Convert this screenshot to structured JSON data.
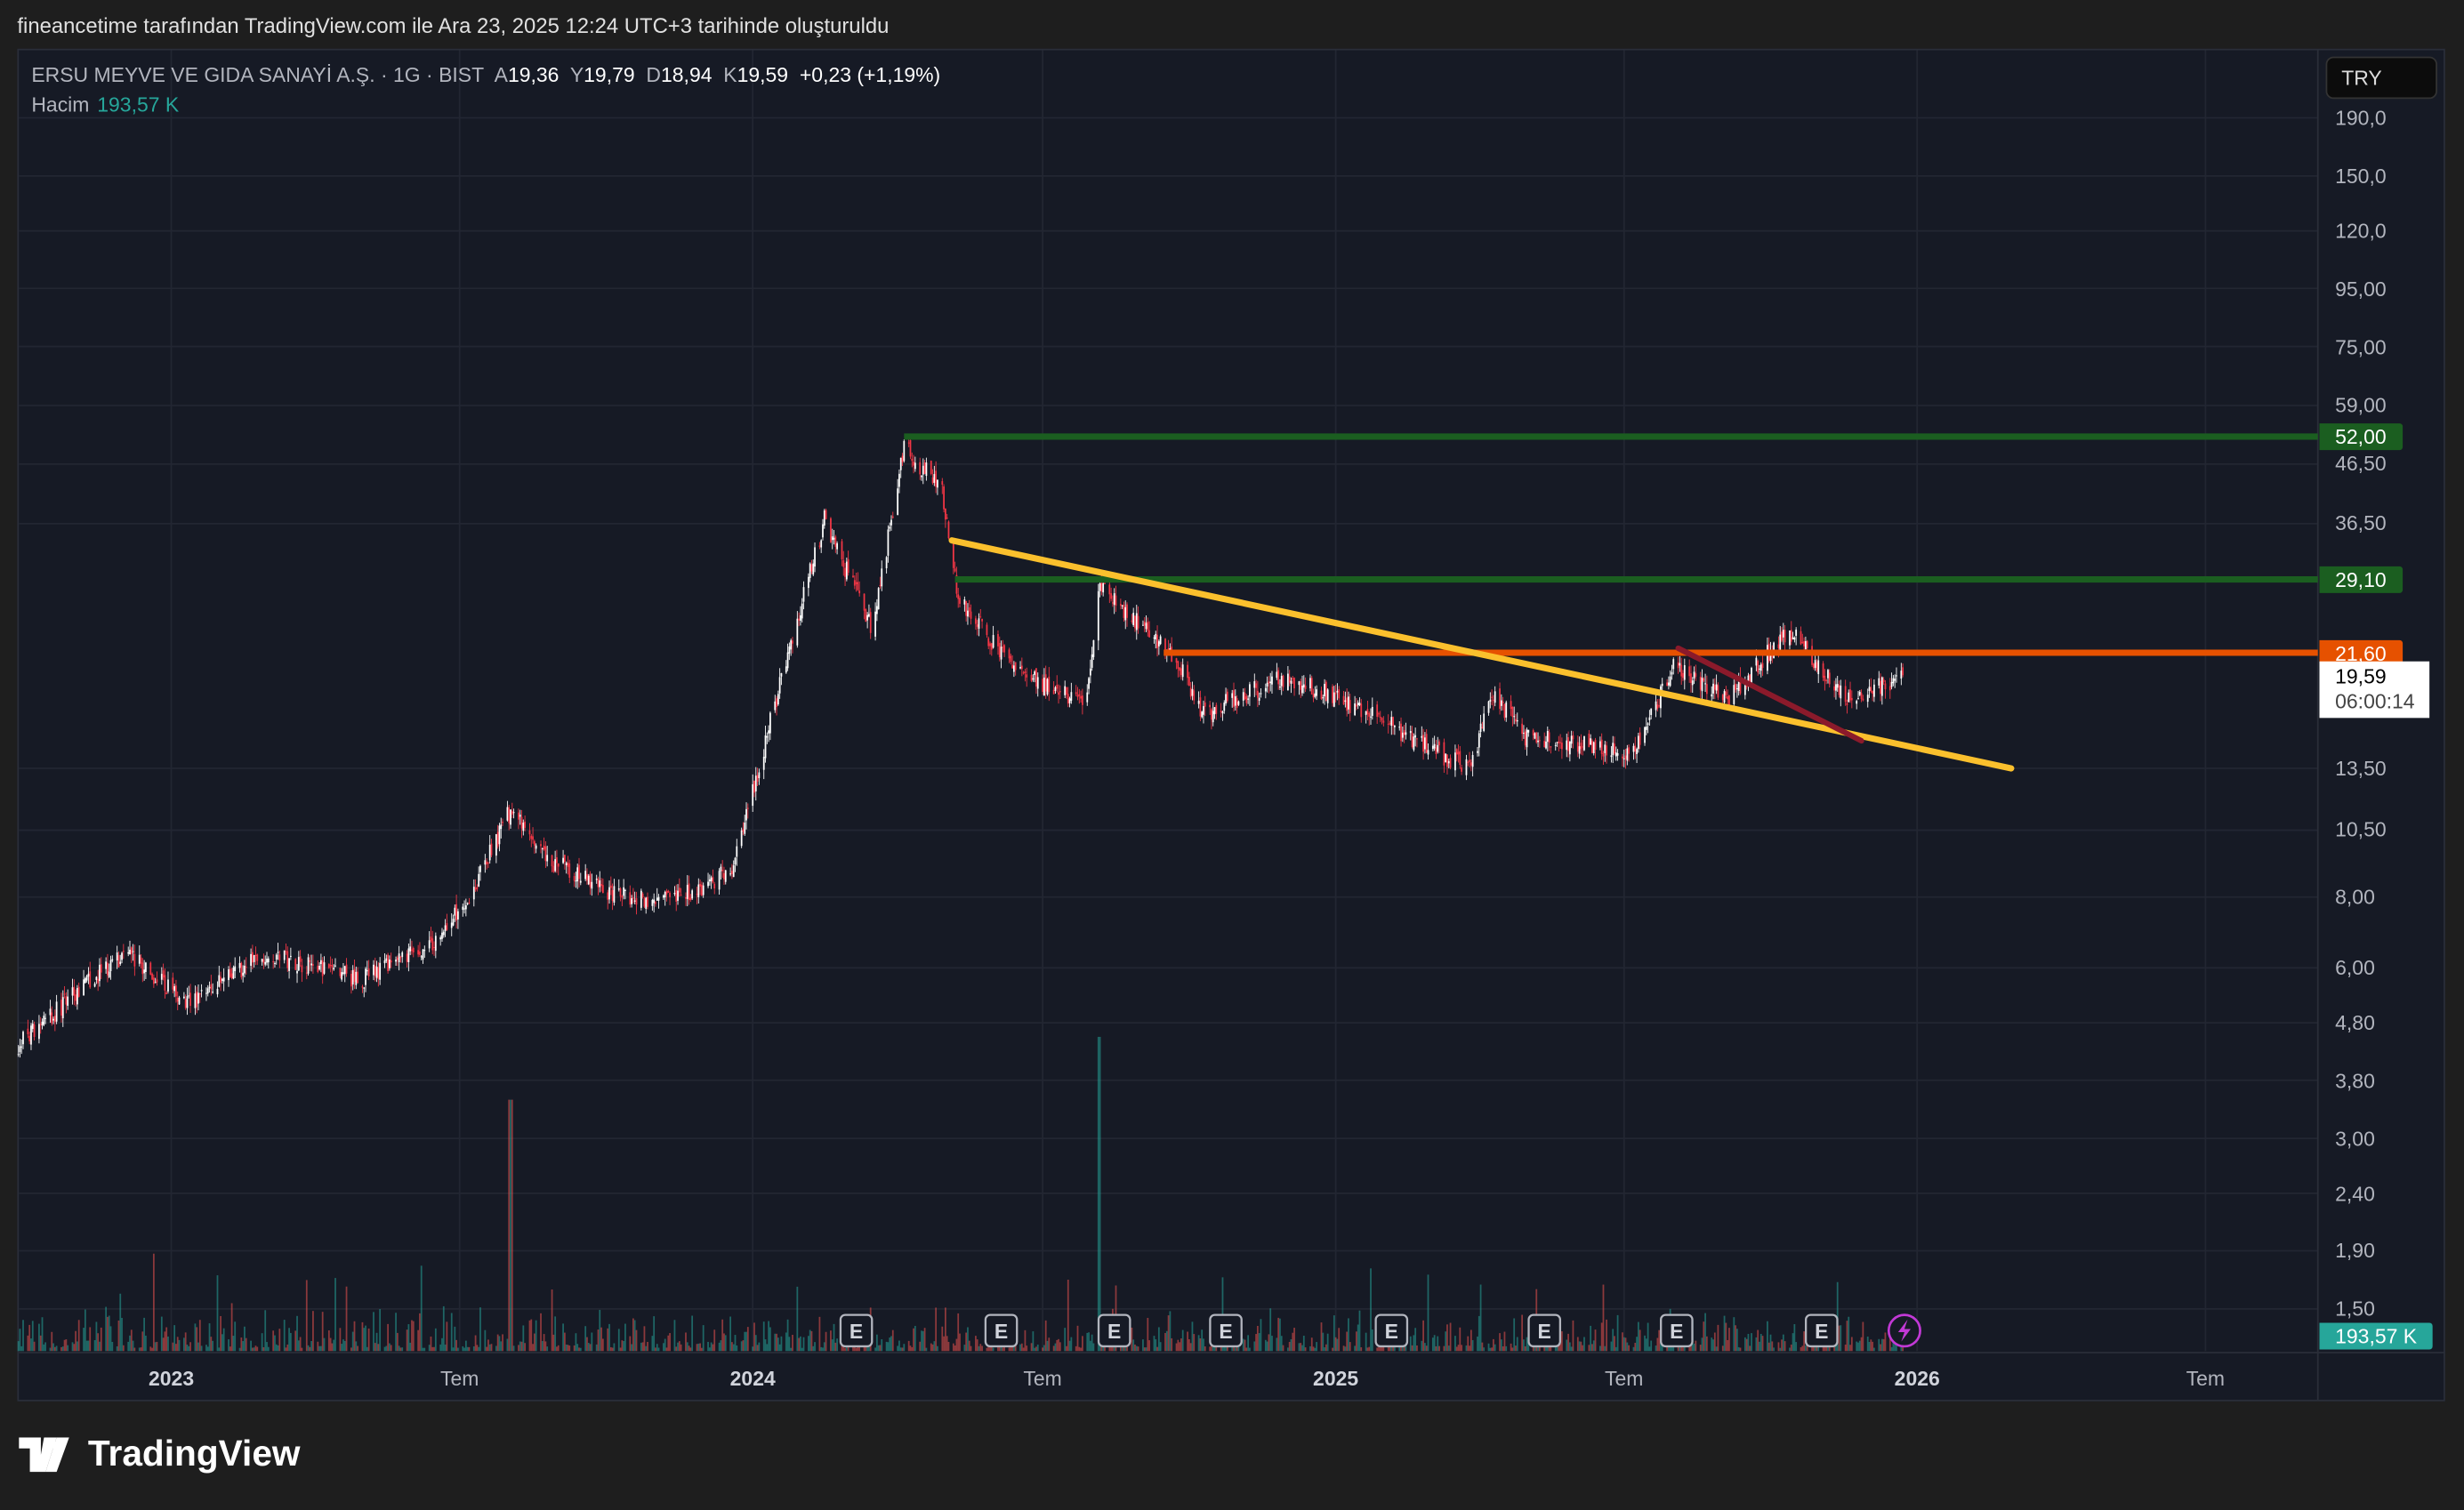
{
  "caption": "fineancetime tarafından TradingView.com ile Ara 23, 2025 12:24 UTC+3 tarihinde oluşturuldu",
  "legend": {
    "symbol": "ERSU MEYVE VE GIDA SANAYİ A.Ş. · 1G · BIST",
    "open_label": "A",
    "open": "19,36",
    "high_label": "Y",
    "high": "19,79",
    "low_label": "D",
    "low": "18,94",
    "close_label": "K",
    "close": "19,59",
    "change": "+0,23 (+1,19%)",
    "volume_label": "Hacim",
    "volume": "193,57 K"
  },
  "currency": "TRY",
  "logo": "TradingView",
  "colors": {
    "background": "#161a25",
    "up": "#ffffff",
    "down": "#f23645",
    "volume_up": "#26a69a",
    "volume_down": "#ef5350",
    "level_green": "#1b5e20",
    "level_orange": "#e65100",
    "trendline": "#fbc02d",
    "trendline2": "#8b1a2b"
  },
  "chart_data": {
    "type": "candlestick",
    "symbol": "ERSU",
    "interval": "1G",
    "exchange": "BIST",
    "scale": "log",
    "ylim": [
      1.4,
      210
    ],
    "y_ticks": [
      "190,0",
      "150,0",
      "120,0",
      "95,00",
      "75,00",
      "59,00",
      "46,50",
      "36,50",
      "13,50",
      "10,50",
      "8,00",
      "6,00",
      "4,80",
      "3,80",
      "3,00",
      "2,40",
      "1,90",
      "1,50"
    ],
    "y_tick_values": [
      190,
      150,
      120,
      95,
      75,
      59,
      46.5,
      36.5,
      13.5,
      10.5,
      8,
      6,
      4.8,
      3.8,
      3,
      2.4,
      1.9,
      1.5
    ],
    "x_ticks": [
      {
        "label": "2023",
        "date": "2023-01-01",
        "bold": true
      },
      {
        "label": "Tem",
        "date": "2023-07-01"
      },
      {
        "label": "2024",
        "date": "2024-01-01",
        "bold": true
      },
      {
        "label": "Tem",
        "date": "2024-07-01"
      },
      {
        "label": "2025",
        "date": "2025-01-01",
        "bold": true
      },
      {
        "label": "Tem",
        "date": "2025-07-01"
      },
      {
        "label": "2026",
        "date": "2026-01-01",
        "bold": true
      },
      {
        "label": "Tem",
        "date": "2026-07-01"
      }
    ],
    "xlim": [
      "2022-09-26",
      "2026-10-10"
    ],
    "approx_closes": [
      [
        "2022-09-27",
        4.4
      ],
      [
        "2022-10-30",
        5.3
      ],
      [
        "2022-12-03",
        6.4
      ],
      [
        "2023-01-12",
        5.2
      ],
      [
        "2023-03-02",
        6.4
      ],
      [
        "2023-04-30",
        5.7
      ],
      [
        "2023-06-14",
        6.6
      ],
      [
        "2023-07-08",
        8.1
      ],
      [
        "2023-08-02",
        11.4
      ],
      [
        "2023-08-22",
        9.45
      ],
      [
        "2023-10-05",
        8.1
      ],
      [
        "2023-11-14",
        7.9
      ],
      [
        "2023-12-18",
        8.9
      ],
      [
        "2024-01-02",
        12.6
      ],
      [
        "2024-01-22",
        21
      ],
      [
        "2024-02-15",
        37
      ],
      [
        "2024-03-16",
        23.8
      ],
      [
        "2024-04-05",
        49.7
      ],
      [
        "2024-04-29",
        42
      ],
      [
        "2024-05-09",
        27
      ],
      [
        "2024-06-08",
        21
      ],
      [
        "2024-07-27",
        17.3
      ],
      [
        "2024-08-06",
        28
      ],
      [
        "2024-09-24",
        21
      ],
      [
        "2024-10-09",
        16.8
      ],
      [
        "2024-12-02",
        19.7
      ],
      [
        "2025-01-31",
        16.3
      ],
      [
        "2025-03-26",
        13.4
      ],
      [
        "2025-04-10",
        18.5
      ],
      [
        "2025-04-29",
        15.3
      ],
      [
        "2025-07-07",
        14.5
      ],
      [
        "2025-08-01",
        20.3
      ],
      [
        "2025-09-05",
        17.9
      ],
      [
        "2025-10-12",
        23.8
      ],
      [
        "2025-11-18",
        17.9
      ],
      [
        "2025-12-23",
        19.59
      ]
    ],
    "volume_spikes": [
      [
        "2023-08-02",
        3.2
      ],
      [
        "2024-08-05",
        4.0
      ]
    ],
    "last_price": "19,59",
    "countdown": "06:00:14",
    "last_volume": "193,57 K",
    "levels": [
      {
        "price": 52.0,
        "label": "52,00",
        "from": "2024-04-05",
        "color": "#1b5e20"
      },
      {
        "price": 29.1,
        "label": "29,10",
        "from": "2024-05-07",
        "color": "#1b5e20"
      },
      {
        "price": 21.6,
        "label": "21,60",
        "from": "2024-09-15",
        "color": "#e65100"
      }
    ],
    "trendlines": [
      {
        "from": [
          "2024-05-05",
          34.1
        ],
        "to": [
          "2026-03-01",
          13.5
        ],
        "color": "#fbc02d"
      },
      {
        "from": [
          "2025-08-04",
          22.0
        ],
        "to": [
          "2025-11-27",
          15.1
        ],
        "color": "#8b1a2b"
      }
    ],
    "earnings_markers": {
      "label": "E",
      "dates": [
        "2024-03-06",
        "2024-06-05",
        "2024-08-15",
        "2024-10-24",
        "2025-02-05",
        "2025-05-12",
        "2025-08-03",
        "2025-11-02"
      ]
    },
    "event_marker": {
      "icon": "lightning-icon",
      "date": "2025-12-24"
    }
  }
}
